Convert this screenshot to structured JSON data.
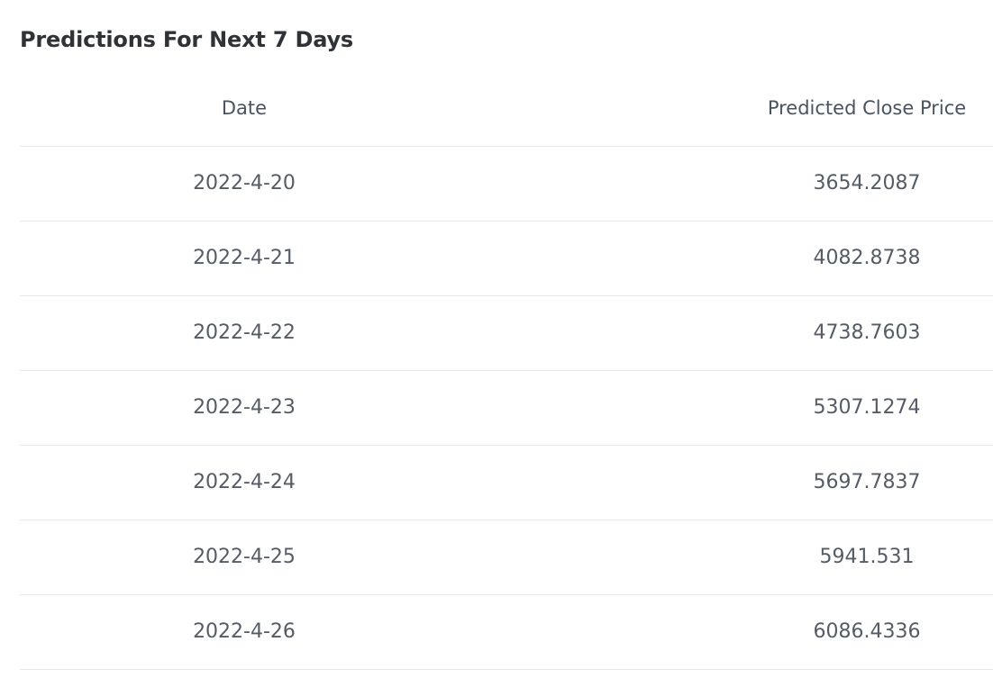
{
  "title": "Predictions For Next 7 Days",
  "table": {
    "columns": [
      "Date",
      "Predicted Close Price"
    ],
    "rows": [
      [
        "2022-4-20",
        "3654.2087"
      ],
      [
        "2022-4-21",
        "4082.8738"
      ],
      [
        "2022-4-22",
        "4738.7603"
      ],
      [
        "2022-4-23",
        "5307.1274"
      ],
      [
        "2022-4-24",
        "5697.7837"
      ],
      [
        "2022-4-25",
        "5941.531"
      ],
      [
        "2022-4-26",
        "6086.4336"
      ]
    ]
  }
}
